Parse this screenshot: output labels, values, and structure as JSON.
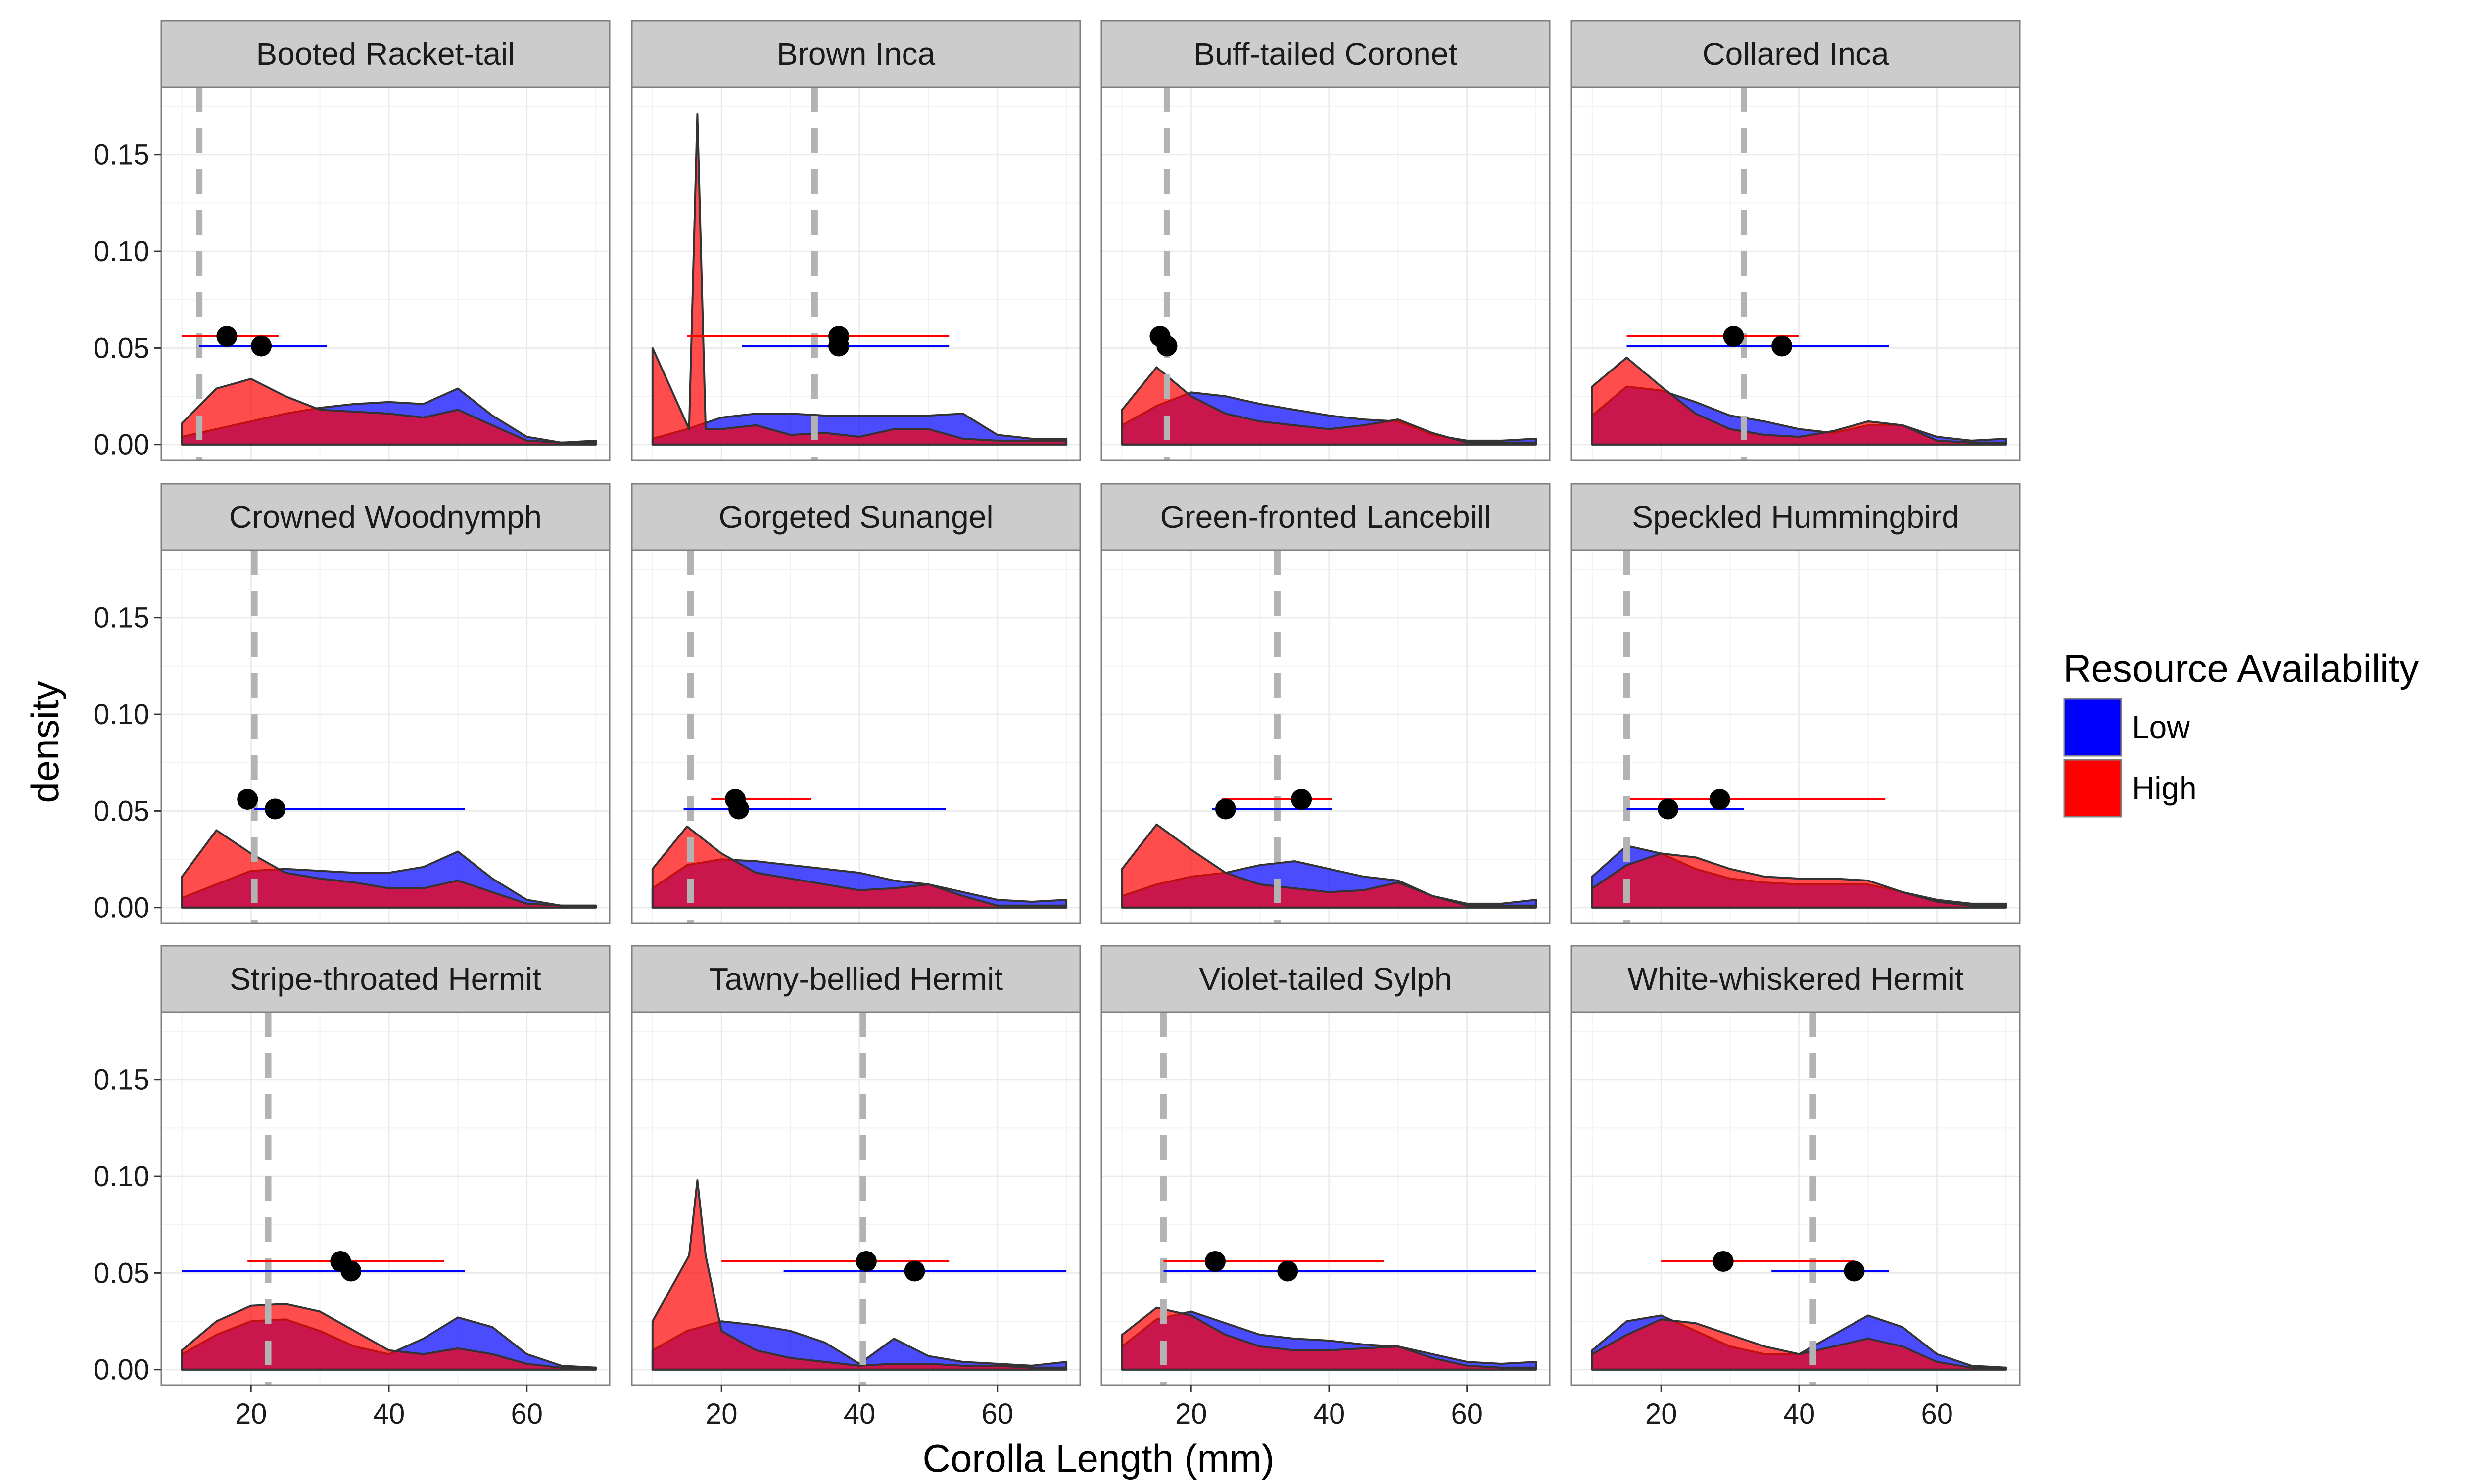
{
  "chart_data": {
    "type": "area",
    "facet_layout": "3x4",
    "xlabel": "Corolla Length (mm)",
    "ylabel": "density",
    "xlim": [
      7,
      72
    ],
    "ylim": [
      -0.008,
      0.185
    ],
    "x_ticks": [
      20,
      40,
      60
    ],
    "y_ticks": [
      0.0,
      0.05,
      0.1,
      0.15
    ],
    "y_tick_labels": [
      "0.00",
      "0.05",
      "0.10",
      "0.15"
    ],
    "grid": true,
    "legend": {
      "title": "Resource Availability",
      "position": "right",
      "entries": [
        {
          "label": "Low",
          "color": "#0000ff"
        },
        {
          "label": "High",
          "color": "#ff0000"
        }
      ]
    },
    "colors": {
      "low": "#0000ff",
      "high": "#ff0000",
      "overlap": "#c1003f",
      "reference_line": "#b3b3b3",
      "point": "#000000",
      "strip": "#cccccc",
      "panel_border": "#7f7f7f"
    },
    "density_x": [
      10,
      15,
      20,
      25,
      30,
      35,
      40,
      45,
      50,
      55,
      60,
      65,
      70
    ],
    "panels": [
      {
        "title": "Booted Racket-tail",
        "ref_line": 12.5,
        "low": {
          "mean": 21.5,
          "y": 0.051,
          "lo": 12.5,
          "hi": 31
        },
        "high": {
          "mean": 16.5,
          "y": 0.056,
          "lo": 10,
          "hi": 24
        },
        "low_density": [
          0.004,
          0.008,
          0.012,
          0.016,
          0.019,
          0.021,
          0.022,
          0.021,
          0.029,
          0.015,
          0.004,
          0.001,
          0.002
        ],
        "high_density": [
          0.011,
          0.029,
          0.034,
          0.025,
          0.018,
          0.017,
          0.016,
          0.014,
          0.018,
          0.01,
          0.002,
          0.001,
          0.001
        ]
      },
      {
        "title": "Brown Inca",
        "ref_line": 33.5,
        "low": {
          "mean": 37,
          "y": 0.051,
          "lo": 23,
          "hi": 53
        },
        "high": {
          "mean": 37,
          "y": 0.056,
          "lo": 15,
          "hi": 53
        },
        "low_density": [
          0.003,
          0.008,
          0.014,
          0.016,
          0.016,
          0.015,
          0.015,
          0.015,
          0.015,
          0.016,
          0.005,
          0.003,
          0.003
        ],
        "high_density": [
          0.05,
          0.01,
          0.008,
          0.01,
          0.005,
          0.006,
          0.004,
          0.008,
          0.008,
          0.003,
          0.002,
          0.002,
          0.002
        ],
        "high_peak": {
          "x": 16.5,
          "y": 0.171
        }
      },
      {
        "title": "Buff-tailed Coronet",
        "ref_line": 16.5,
        "low": {
          "mean": 16.5,
          "y": 0.051,
          "lo": 15,
          "hi": 18
        },
        "high": {
          "mean": 15.5,
          "y": 0.056,
          "lo": 14,
          "hi": 17
        },
        "low_density": [
          0.01,
          0.02,
          0.027,
          0.025,
          0.021,
          0.018,
          0.015,
          0.013,
          0.012,
          0.005,
          0.002,
          0.002,
          0.003
        ],
        "high_density": [
          0.018,
          0.04,
          0.025,
          0.016,
          0.012,
          0.01,
          0.008,
          0.01,
          0.013,
          0.006,
          0.001,
          0.001,
          0.001
        ]
      },
      {
        "title": "Collared Inca",
        "ref_line": 32,
        "low": {
          "mean": 37.5,
          "y": 0.051,
          "lo": 15,
          "hi": 53
        },
        "high": {
          "mean": 30.5,
          "y": 0.056,
          "lo": 15,
          "hi": 40
        },
        "low_density": [
          0.015,
          0.03,
          0.028,
          0.022,
          0.015,
          0.012,
          0.008,
          0.006,
          0.01,
          0.01,
          0.004,
          0.002,
          0.003
        ],
        "high_density": [
          0.03,
          0.045,
          0.03,
          0.016,
          0.008,
          0.005,
          0.004,
          0.007,
          0.012,
          0.01,
          0.002,
          0.001,
          0.001
        ]
      },
      {
        "title": "Crowned Woodnymph",
        "ref_line": 20.5,
        "low": {
          "mean": 23.5,
          "y": 0.051,
          "lo": 20.5,
          "hi": 51
        },
        "high": {
          "mean": 19.5,
          "y": 0.056,
          "lo": 19.5,
          "hi": 20
        },
        "high_end_marker": "none",
        "low_density": [
          0.005,
          0.012,
          0.019,
          0.02,
          0.019,
          0.018,
          0.018,
          0.021,
          0.029,
          0.015,
          0.004,
          0.001,
          0.001
        ],
        "high_density": [
          0.016,
          0.04,
          0.028,
          0.018,
          0.015,
          0.013,
          0.01,
          0.01,
          0.014,
          0.008,
          0.002,
          0.001,
          0.001
        ]
      },
      {
        "title": "Gorgeted Sunangel",
        "ref_line": 15.5,
        "low": {
          "mean": 22.5,
          "y": 0.051,
          "lo": 14.5,
          "hi": 52.5
        },
        "high": {
          "mean": 22,
          "y": 0.056,
          "lo": 18.5,
          "hi": 33
        },
        "low_density": [
          0.01,
          0.022,
          0.025,
          0.024,
          0.022,
          0.02,
          0.018,
          0.014,
          0.012,
          0.008,
          0.004,
          0.003,
          0.004
        ],
        "high_density": [
          0.02,
          0.042,
          0.028,
          0.018,
          0.015,
          0.012,
          0.009,
          0.01,
          0.012,
          0.006,
          0.001,
          0.001,
          0.001
        ]
      },
      {
        "title": "Green-fronted Lancebill",
        "ref_line": 32.5,
        "low": {
          "mean": 25,
          "y": 0.051,
          "lo": 23,
          "hi": 40.5
        },
        "high": {
          "mean": 36,
          "y": 0.056,
          "lo": 24.5,
          "hi": 40.5
        },
        "low_density": [
          0.006,
          0.012,
          0.016,
          0.018,
          0.022,
          0.024,
          0.02,
          0.016,
          0.014,
          0.006,
          0.002,
          0.002,
          0.004
        ],
        "high_density": [
          0.02,
          0.043,
          0.03,
          0.018,
          0.012,
          0.01,
          0.008,
          0.009,
          0.013,
          0.006,
          0.001,
          0.001,
          0.001
        ]
      },
      {
        "title": "Speckled Hummingbird",
        "ref_line": 15,
        "low": {
          "mean": 21,
          "y": 0.051,
          "lo": 15,
          "hi": 32
        },
        "high": {
          "mean": 28.5,
          "y": 0.056,
          "lo": 15.5,
          "hi": 52.5
        },
        "low_density": [
          0.016,
          0.032,
          0.028,
          0.02,
          0.015,
          0.013,
          0.012,
          0.012,
          0.012,
          0.008,
          0.004,
          0.002,
          0.002
        ],
        "high_density": [
          0.01,
          0.022,
          0.028,
          0.026,
          0.02,
          0.016,
          0.015,
          0.015,
          0.014,
          0.008,
          0.003,
          0.001,
          0.001
        ]
      },
      {
        "title": "Stripe-throated Hermit",
        "ref_line": 22.5,
        "low": {
          "mean": 34.5,
          "y": 0.051,
          "lo": 10,
          "hi": 51
        },
        "high": {
          "mean": 33,
          "y": 0.056,
          "lo": 19.5,
          "hi": 48
        },
        "low_density": [
          0.008,
          0.018,
          0.025,
          0.026,
          0.02,
          0.012,
          0.008,
          0.016,
          0.027,
          0.022,
          0.008,
          0.002,
          0.001
        ],
        "high_density": [
          0.01,
          0.025,
          0.033,
          0.034,
          0.03,
          0.02,
          0.01,
          0.008,
          0.011,
          0.008,
          0.003,
          0.001,
          0.001
        ]
      },
      {
        "title": "Tawny-bellied Hermit",
        "ref_line": 40.5,
        "low": {
          "mean": 48,
          "y": 0.051,
          "lo": 29,
          "hi": 70
        },
        "high": {
          "mean": 41,
          "y": 0.056,
          "lo": 20,
          "hi": 53
        },
        "low_density": [
          0.01,
          0.02,
          0.025,
          0.023,
          0.02,
          0.014,
          0.003,
          0.016,
          0.007,
          0.004,
          0.003,
          0.002,
          0.004
        ],
        "high_density": [
          0.025,
          0.095,
          0.02,
          0.01,
          0.006,
          0.004,
          0.002,
          0.003,
          0.003,
          0.002,
          0.002,
          0.001,
          0.001
        ],
        "high_peak": {
          "x": 16.5,
          "y": 0.098
        }
      },
      {
        "title": "Violet-tailed Sylph",
        "ref_line": 16,
        "low": {
          "mean": 34,
          "y": 0.051,
          "lo": 16,
          "hi": 70
        },
        "high": {
          "mean": 23.5,
          "y": 0.056,
          "lo": 16,
          "hi": 48
        },
        "low_density": [
          0.012,
          0.026,
          0.03,
          0.024,
          0.018,
          0.016,
          0.015,
          0.013,
          0.012,
          0.008,
          0.004,
          0.003,
          0.004
        ],
        "high_density": [
          0.018,
          0.032,
          0.028,
          0.018,
          0.012,
          0.01,
          0.01,
          0.011,
          0.012,
          0.006,
          0.002,
          0.001,
          0.001
        ]
      },
      {
        "title": "White-whiskered Hermit",
        "ref_line": 42,
        "low": {
          "mean": 48,
          "y": 0.051,
          "lo": 36,
          "hi": 53
        },
        "high": {
          "mean": 29,
          "y": 0.056,
          "lo": 20,
          "hi": 48
        },
        "low_density": [
          0.01,
          0.025,
          0.028,
          0.02,
          0.012,
          0.008,
          0.008,
          0.018,
          0.028,
          0.022,
          0.008,
          0.002,
          0.001
        ],
        "high_density": [
          0.008,
          0.018,
          0.026,
          0.024,
          0.018,
          0.012,
          0.008,
          0.012,
          0.016,
          0.012,
          0.004,
          0.001,
          0.001
        ]
      }
    ]
  }
}
